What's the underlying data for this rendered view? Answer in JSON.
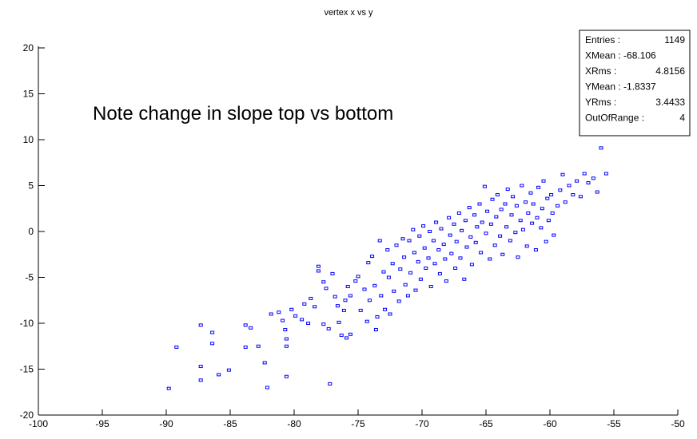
{
  "chart_data": {
    "type": "scatter",
    "title": "vertex x vs y",
    "annotation": "Note change in slope top vs bottom",
    "xlabel": "",
    "ylabel": "",
    "xlim": [
      -100,
      -50
    ],
    "ylim": [
      -20,
      20
    ],
    "x_ticks": [
      -100,
      -95,
      -90,
      -85,
      -80,
      -75,
      -70,
      -65,
      -60,
      -55,
      -50
    ],
    "y_ticks": [
      -20,
      -15,
      -10,
      -5,
      0,
      5,
      10,
      15,
      20
    ],
    "marker_color": "#0000ff",
    "stats_box": [
      {
        "label": "Entries :",
        "value": "1149"
      },
      {
        "label": "XMean : -68.106",
        "value": ""
      },
      {
        "label": "XRms :",
        "value": "4.8156"
      },
      {
        "label": "YMean : -1.8337",
        "value": ""
      },
      {
        "label": "YRms :",
        "value": "3.4433"
      },
      {
        "label": "OutOfRange :",
        "value": "4"
      }
    ],
    "points": [
      [
        -89.8,
        -17.1
      ],
      [
        -89.2,
        -12.6
      ],
      [
        -87.3,
        -10.2
      ],
      [
        -87.3,
        -14.7
      ],
      [
        -87.3,
        -16.2
      ],
      [
        -86.4,
        -11.0
      ],
      [
        -86.4,
        -12.2
      ],
      [
        -85.9,
        -15.6
      ],
      [
        -85.1,
        -15.1
      ],
      [
        -83.8,
        -10.2
      ],
      [
        -83.8,
        -12.6
      ],
      [
        -83.4,
        -10.5
      ],
      [
        -82.8,
        -12.5
      ],
      [
        -82.3,
        -14.3
      ],
      [
        -82.1,
        -17.0
      ],
      [
        -81.8,
        -9.0
      ],
      [
        -81.2,
        -8.8
      ],
      [
        -80.9,
        -9.7
      ],
      [
        -80.7,
        -10.7
      ],
      [
        -80.6,
        -11.7
      ],
      [
        -80.6,
        -12.5
      ],
      [
        -80.6,
        -15.8
      ],
      [
        -80.2,
        -8.5
      ],
      [
        -79.9,
        -9.2
      ],
      [
        -79.4,
        -9.6
      ],
      [
        -79.2,
        -7.9
      ],
      [
        -78.9,
        -10.0
      ],
      [
        -78.7,
        -7.3
      ],
      [
        -78.4,
        -8.2
      ],
      [
        -78.1,
        -4.3
      ],
      [
        -78.1,
        -3.8
      ],
      [
        -77.7,
        -10.1
      ],
      [
        -77.7,
        -5.5
      ],
      [
        -77.5,
        -6.2
      ],
      [
        -77.3,
        -10.6
      ],
      [
        -77.2,
        -16.6
      ],
      [
        -77.0,
        -4.6
      ],
      [
        -76.8,
        -7.1
      ],
      [
        -76.6,
        -8.1
      ],
      [
        -76.5,
        -9.9
      ],
      [
        -76.3,
        -11.3
      ],
      [
        -76.1,
        -8.6
      ],
      [
        -76.0,
        -7.5
      ],
      [
        -75.9,
        -11.6
      ],
      [
        -75.8,
        -6.0
      ],
      [
        -75.6,
        -7.0
      ],
      [
        -75.6,
        -11.2
      ],
      [
        -75.2,
        -5.4
      ],
      [
        -75.0,
        -4.9
      ],
      [
        -74.8,
        -8.6
      ],
      [
        -74.5,
        -6.3
      ],
      [
        -74.3,
        -9.8
      ],
      [
        -74.2,
        -3.4
      ],
      [
        -74.1,
        -7.5
      ],
      [
        -73.9,
        -2.7
      ],
      [
        -73.7,
        -5.9
      ],
      [
        -73.6,
        -10.7
      ],
      [
        -73.5,
        -9.3
      ],
      [
        -73.3,
        -1.0
      ],
      [
        -73.2,
        -7.0
      ],
      [
        -73.0,
        -4.4
      ],
      [
        -72.9,
        -8.5
      ],
      [
        -72.7,
        -2.0
      ],
      [
        -72.6,
        -5.0
      ],
      [
        -72.5,
        -9.0
      ],
      [
        -72.3,
        -3.5
      ],
      [
        -72.2,
        -6.5
      ],
      [
        -72.0,
        -1.5
      ],
      [
        -71.8,
        -7.6
      ],
      [
        -71.7,
        -4.1
      ],
      [
        -71.5,
        -0.8
      ],
      [
        -71.4,
        -2.8
      ],
      [
        -71.3,
        -5.8
      ],
      [
        -71.1,
        -7.0
      ],
      [
        -71.0,
        -1.0
      ],
      [
        -70.9,
        -4.5
      ],
      [
        -70.7,
        0.2
      ],
      [
        -70.6,
        -2.3
      ],
      [
        -70.5,
        -6.4
      ],
      [
        -70.3,
        -3.3
      ],
      [
        -70.2,
        -0.5
      ],
      [
        -70.1,
        -5.2
      ],
      [
        -69.9,
        0.6
      ],
      [
        -69.8,
        -1.8
      ],
      [
        -69.7,
        -4.0
      ],
      [
        -69.5,
        -2.9
      ],
      [
        -69.4,
        0.0
      ],
      [
        -69.3,
        -6.0
      ],
      [
        -69.1,
        -1.0
      ],
      [
        -69.0,
        -3.5
      ],
      [
        -68.9,
        1.0
      ],
      [
        -68.7,
        -2.0
      ],
      [
        -68.6,
        -4.6
      ],
      [
        -68.5,
        0.3
      ],
      [
        -68.3,
        -1.4
      ],
      [
        -68.2,
        -3.0
      ],
      [
        -68.1,
        -5.4
      ],
      [
        -67.9,
        1.5
      ],
      [
        -67.8,
        -0.4
      ],
      [
        -67.7,
        -2.4
      ],
      [
        -67.5,
        0.8
      ],
      [
        -67.4,
        -4.0
      ],
      [
        -67.3,
        -1.1
      ],
      [
        -67.1,
        2.0
      ],
      [
        -67.0,
        -2.9
      ],
      [
        -66.9,
        0.1
      ],
      [
        -66.7,
        -5.2
      ],
      [
        -66.6,
        1.2
      ],
      [
        -66.5,
        -1.7
      ],
      [
        -66.3,
        2.6
      ],
      [
        -66.2,
        -0.6
      ],
      [
        -66.1,
        -3.6
      ],
      [
        -65.9,
        1.8
      ],
      [
        -65.8,
        -1.2
      ],
      [
        -65.7,
        0.5
      ],
      [
        -65.5,
        3.0
      ],
      [
        -65.4,
        -2.3
      ],
      [
        -65.3,
        1.0
      ],
      [
        -65.1,
        4.9
      ],
      [
        -65.0,
        -0.2
      ],
      [
        -64.9,
        2.2
      ],
      [
        -64.7,
        -3.0
      ],
      [
        -64.6,
        0.8
      ],
      [
        -64.5,
        3.5
      ],
      [
        -64.3,
        -1.5
      ],
      [
        -64.2,
        1.6
      ],
      [
        -64.1,
        4.0
      ],
      [
        -63.9,
        -0.5
      ],
      [
        -63.8,
        2.4
      ],
      [
        -63.7,
        -2.5
      ],
      [
        -63.5,
        3.0
      ],
      [
        -63.4,
        0.5
      ],
      [
        -63.3,
        4.6
      ],
      [
        -63.1,
        -1.0
      ],
      [
        -63.0,
        1.8
      ],
      [
        -62.9,
        3.8
      ],
      [
        -62.7,
        -0.1
      ],
      [
        -62.6,
        2.8
      ],
      [
        -62.5,
        -2.8
      ],
      [
        -62.3,
        1.2
      ],
      [
        -62.2,
        5.0
      ],
      [
        -62.1,
        0.2
      ],
      [
        -61.9,
        3.2
      ],
      [
        -61.8,
        -1.6
      ],
      [
        -61.7,
        2.0
      ],
      [
        -61.5,
        4.2
      ],
      [
        -61.4,
        0.9
      ],
      [
        -61.3,
        3.0
      ],
      [
        -61.1,
        -2.0
      ],
      [
        -61.0,
        1.5
      ],
      [
        -60.9,
        4.8
      ],
      [
        -60.7,
        0.4
      ],
      [
        -60.6,
        2.5
      ],
      [
        -60.5,
        5.5
      ],
      [
        -60.3,
        -1.1
      ],
      [
        -60.2,
        3.6
      ],
      [
        -60.1,
        1.2
      ],
      [
        -59.9,
        4.0
      ],
      [
        -59.8,
        2.0
      ],
      [
        -59.7,
        -0.4
      ],
      [
        -59.4,
        2.8
      ],
      [
        -59.2,
        4.5
      ],
      [
        -59.0,
        6.2
      ],
      [
        -58.8,
        3.2
      ],
      [
        -58.5,
        5.0
      ],
      [
        -58.2,
        4.0
      ],
      [
        -57.9,
        5.5
      ],
      [
        -57.6,
        3.8
      ],
      [
        -57.3,
        6.3
      ],
      [
        -57.0,
        5.3
      ],
      [
        -56.6,
        5.8
      ],
      [
        -56.3,
        4.3
      ],
      [
        -56.0,
        9.1
      ],
      [
        -55.6,
        6.3
      ]
    ]
  }
}
